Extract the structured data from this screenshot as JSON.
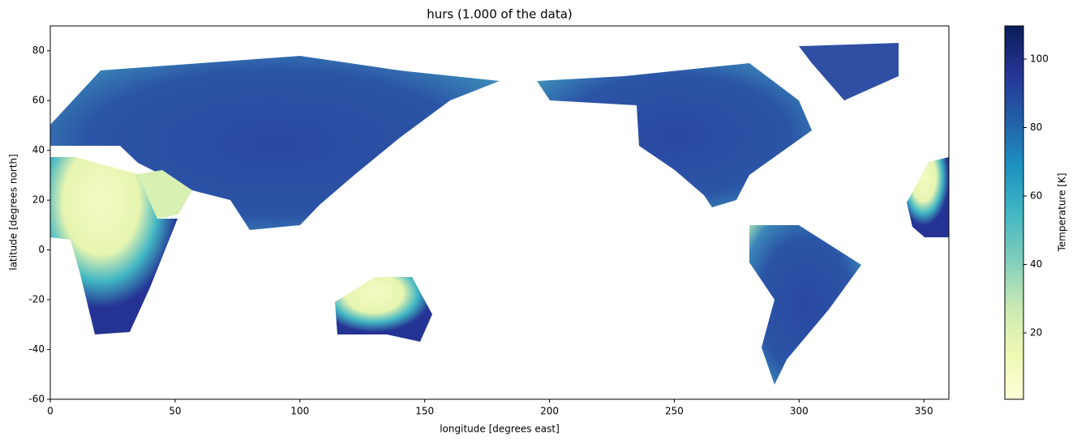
{
  "chart_data": {
    "type": "heatmap",
    "title": "hurs (1.000 of the data)",
    "xlabel": "longitude [degrees east]",
    "ylabel": "latitude [degrees north]",
    "xlim": [
      0,
      360
    ],
    "ylim": [
      -60,
      90
    ],
    "xticks": [
      0,
      50,
      100,
      150,
      200,
      250,
      300,
      350
    ],
    "yticks": [
      -60,
      -40,
      -20,
      0,
      20,
      40,
      60,
      80
    ],
    "colorbar": {
      "label": "Temperature [K]",
      "lim": [
        0.6,
        109.7
      ],
      "ticks": [
        20,
        40,
        60,
        80,
        100
      ]
    }
  }
}
